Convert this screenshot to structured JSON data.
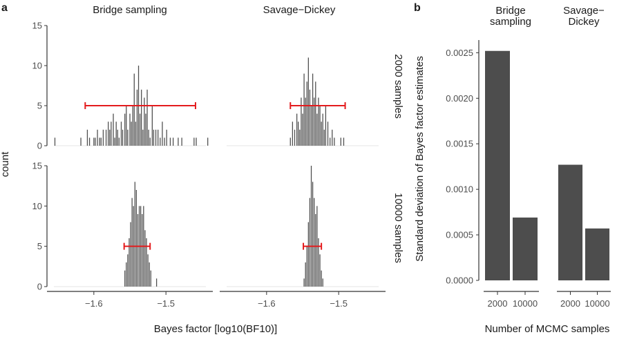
{
  "panels": {
    "a": "a",
    "b": "b"
  },
  "chart_data": [
    {
      "type": "bar",
      "subtype": "histogram-facet-grid",
      "panel": "a",
      "columns": [
        "Bridge sampling",
        "Savage−Dickey"
      ],
      "rows": [
        "2000 samples",
        "10000 samples"
      ],
      "xlabel": "Bayes factor [log10(BF10)]",
      "ylabel": "count",
      "xlim": [
        -1.665,
        -1.435
      ],
      "ylim": [
        0,
        15
      ],
      "x_ticks": [
        -1.6,
        -1.5
      ],
      "x_tick_labels": [
        "−1.6",
        "−1.5"
      ],
      "y_ticks": [
        0,
        5,
        10,
        15
      ],
      "y_tick_labels": [
        "0",
        "5",
        "10",
        "15"
      ],
      "bar_color": "#4d4d4d",
      "interval_color": "#e41a1c",
      "bin_width": 0.0016,
      "facets": [
        {
          "column": "Bridge sampling",
          "row": "2000 samples",
          "interval": {
            "y": 5,
            "x_low": -1.612,
            "x_high": -1.459
          },
          "bins": [
            [
              -1.654,
              1
            ],
            [
              -1.618,
              1
            ],
            [
              -1.609,
              2
            ],
            [
              -1.606,
              1
            ],
            [
              -1.6,
              1
            ],
            [
              -1.598,
              1
            ],
            [
              -1.595,
              2
            ],
            [
              -1.592,
              1
            ],
            [
              -1.59,
              1
            ],
            [
              -1.587,
              2
            ],
            [
              -1.583,
              2
            ],
            [
              -1.58,
              3
            ],
            [
              -1.578,
              2
            ],
            [
              -1.576,
              3
            ],
            [
              -1.573,
              4
            ],
            [
              -1.571,
              1
            ],
            [
              -1.569,
              3
            ],
            [
              -1.567,
              2
            ],
            [
              -1.565,
              1
            ],
            [
              -1.562,
              3
            ],
            [
              -1.56,
              2
            ],
            [
              -1.557,
              4
            ],
            [
              -1.555,
              5
            ],
            [
              -1.553,
              2
            ],
            [
              -1.55,
              4
            ],
            [
              -1.548,
              3
            ],
            [
              -1.546,
              5
            ],
            [
              -1.544,
              9
            ],
            [
              -1.542,
              3
            ],
            [
              -1.54,
              7
            ],
            [
              -1.538,
              10
            ],
            [
              -1.536,
              4
            ],
            [
              -1.534,
              7
            ],
            [
              -1.532,
              2
            ],
            [
              -1.53,
              6
            ],
            [
              -1.528,
              4
            ],
            [
              -1.526,
              7
            ],
            [
              -1.524,
              2
            ],
            [
              -1.522,
              1
            ],
            [
              -1.519,
              5
            ],
            [
              -1.517,
              2
            ],
            [
              -1.514,
              2
            ],
            [
              -1.511,
              2
            ],
            [
              -1.508,
              1
            ],
            [
              -1.505,
              3
            ],
            [
              -1.502,
              1
            ],
            [
              -1.499,
              2
            ],
            [
              -1.494,
              1
            ],
            [
              -1.49,
              1
            ],
            [
              -1.483,
              1
            ],
            [
              -1.478,
              1
            ],
            [
              -1.461,
              1
            ],
            [
              -1.458,
              1
            ],
            [
              -1.442,
              1
            ]
          ]
        },
        {
          "column": "Savage−Dickey",
          "row": "2000 samples",
          "interval": {
            "y": 5,
            "x_low": -1.567,
            "x_high": -1.491
          },
          "bins": [
            [
              -1.567,
              1
            ],
            [
              -1.564,
              3
            ],
            [
              -1.561,
              2
            ],
            [
              -1.558,
              4
            ],
            [
              -1.556,
              3
            ],
            [
              -1.554,
              2
            ],
            [
              -1.552,
              6
            ],
            [
              -1.55,
              4
            ],
            [
              -1.548,
              9
            ],
            [
              -1.546,
              6
            ],
            [
              -1.544,
              8
            ],
            [
              -1.542,
              11
            ],
            [
              -1.54,
              7
            ],
            [
              -1.538,
              5
            ],
            [
              -1.536,
              9
            ],
            [
              -1.534,
              6
            ],
            [
              -1.532,
              8
            ],
            [
              -1.53,
              4
            ],
            [
              -1.528,
              6
            ],
            [
              -1.526,
              5
            ],
            [
              -1.524,
              3
            ],
            [
              -1.522,
              4
            ],
            [
              -1.52,
              2
            ],
            [
              -1.518,
              5
            ],
            [
              -1.515,
              3
            ],
            [
              -1.512,
              1
            ],
            [
              -1.509,
              2
            ],
            [
              -1.506,
              1
            ],
            [
              -1.497,
              1
            ],
            [
              -1.493,
              1
            ]
          ]
        },
        {
          "column": "Bridge sampling",
          "row": "10000 samples",
          "interval": {
            "y": 5,
            "x_low": -1.558,
            "x_high": -1.522
          },
          "bins": [
            [
              -1.557,
              2
            ],
            [
              -1.555,
              3
            ],
            [
              -1.553,
              4
            ],
            [
              -1.551,
              6
            ],
            [
              -1.549,
              8
            ],
            [
              -1.547,
              11
            ],
            [
              -1.545,
              10
            ],
            [
              -1.543,
              13
            ],
            [
              -1.541,
              12
            ],
            [
              -1.539,
              9
            ],
            [
              -1.537,
              10
            ],
            [
              -1.535,
              10
            ],
            [
              -1.533,
              9
            ],
            [
              -1.531,
              10
            ],
            [
              -1.529,
              7
            ],
            [
              -1.527,
              6
            ],
            [
              -1.525,
              4
            ],
            [
              -1.523,
              3
            ],
            [
              -1.521,
              2
            ],
            [
              -1.513,
              1
            ]
          ]
        },
        {
          "column": "Savage−Dickey",
          "row": "10000 samples",
          "interval": {
            "y": 5,
            "x_low": -1.549,
            "x_high": -1.524
          },
          "bins": [
            [
              -1.548,
              1
            ],
            [
              -1.546,
              3
            ],
            [
              -1.544,
              5
            ],
            [
              -1.542,
              8
            ],
            [
              -1.54,
              11
            ],
            [
              -1.538,
              15
            ],
            [
              -1.536,
              13
            ],
            [
              -1.534,
              11
            ],
            [
              -1.532,
              9
            ],
            [
              -1.53,
              10
            ],
            [
              -1.528,
              6
            ],
            [
              -1.526,
              4
            ],
            [
              -1.524,
              2
            ],
            [
              -1.522,
              1
            ]
          ]
        }
      ]
    },
    {
      "type": "bar",
      "panel": "b",
      "groups": [
        "Bridge sampling",
        "Savage−Dickey"
      ],
      "group_label_lines": [
        [
          "Bridge",
          "sampling"
        ],
        [
          "Savage−",
          "Dickey"
        ]
      ],
      "categories": [
        "2000",
        "10000"
      ],
      "values": [
        [
          0.00252,
          0.00069
        ],
        [
          0.00127,
          0.00057
        ]
      ],
      "xlabel": "Number of MCMC samples",
      "ylabel": "Standard deviation of Bayes factor estimates",
      "ylim": [
        0,
        0.0027
      ],
      "y_ticks": [
        0,
        0.0005,
        0.001,
        0.0015,
        0.002,
        0.0025
      ],
      "y_tick_labels": [
        "0.0000",
        "0.0005",
        "0.0010",
        "0.0015",
        "0.0020",
        "0.0025"
      ],
      "bar_color": "#4d4d4d"
    }
  ]
}
